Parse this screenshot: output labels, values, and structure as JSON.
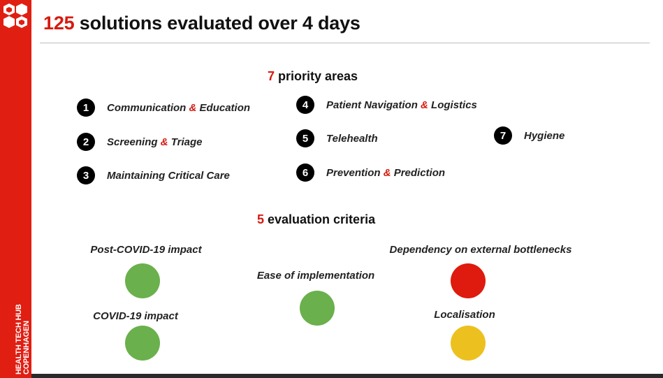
{
  "colors": {
    "brand_red": "#e01e12",
    "accent_red": "#d61a0f",
    "green": "#6ab04c",
    "red": "#df1a0e",
    "yellow": "#ecc11f",
    "number_badge": "#000000"
  },
  "sidebar": {
    "logo_icon": "health-tech-hub-logo",
    "brand_line1": "HEALTH TECH HUB",
    "brand_line2": "COPENHAGEN"
  },
  "header": {
    "title_number": "125",
    "title_text": " solutions evaluated over 4 days"
  },
  "priority": {
    "heading_number": "7",
    "heading_text": " priority areas",
    "areas": [
      {
        "num": "1",
        "before": "Communication ",
        "amp": "&",
        "after": " Education"
      },
      {
        "num": "2",
        "before": "Screening ",
        "amp": "&",
        "after": " Triage"
      },
      {
        "num": "3",
        "before": "Maintaining Critical Care",
        "amp": "",
        "after": ""
      },
      {
        "num": "4",
        "before": "Patient Navigation ",
        "amp": "&",
        "after": " Logistics"
      },
      {
        "num": "5",
        "before": "Telehealth",
        "amp": "",
        "after": ""
      },
      {
        "num": "6",
        "before": "Prevention ",
        "amp": "&",
        "after": " Prediction"
      },
      {
        "num": "7",
        "before": "Hygiene",
        "amp": "",
        "after": ""
      }
    ]
  },
  "criteria": {
    "heading_number": "5",
    "heading_text": " evaluation criteria",
    "items": [
      {
        "label": "Post-COVID-19 impact",
        "status": "green"
      },
      {
        "label": "COVID-19 impact",
        "status": "green"
      },
      {
        "label": "Ease of implementation",
        "status": "green"
      },
      {
        "label": "Dependency on external bottlenecks",
        "status": "red"
      },
      {
        "label": "Localisation",
        "status": "yellow"
      }
    ]
  }
}
